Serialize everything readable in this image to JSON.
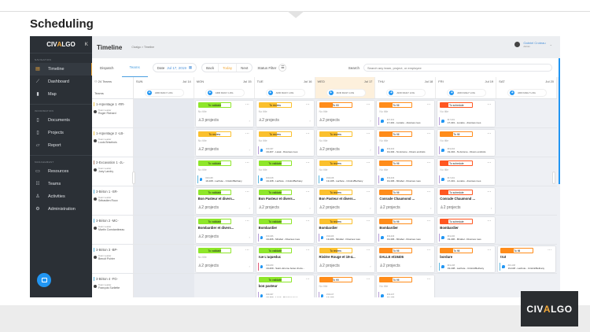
{
  "page_title": "Scheduling",
  "brand": {
    "part1": "CIV",
    "part2": "A",
    "part3": "LGO"
  },
  "sidebar": {
    "collapse": "K",
    "sections": [
      {
        "label": "NAVIGATION",
        "items": [
          {
            "label": "Timeline",
            "icon": "calendar-icon",
            "glyph": "▤",
            "active": true
          },
          {
            "label": "Dashboard",
            "icon": "chart-icon",
            "glyph": "⟋"
          },
          {
            "label": "Map",
            "icon": "map-icon",
            "glyph": "▮"
          }
        ]
      },
      {
        "label": "INFORMATION",
        "items": [
          {
            "label": "Documents",
            "icon": "document-icon",
            "glyph": "▯"
          },
          {
            "label": "Projects",
            "icon": "clipboard-icon",
            "glyph": "▯"
          },
          {
            "label": "Report",
            "icon": "report-icon",
            "glyph": "▱"
          }
        ]
      },
      {
        "label": "MANAGEMENT",
        "items": [
          {
            "label": "Resources",
            "icon": "toolbox-icon",
            "glyph": "▭"
          },
          {
            "label": "Teams",
            "icon": "team-icon",
            "glyph": "⁞⁞⁞"
          },
          {
            "label": "Activities",
            "icon": "activities-icon",
            "glyph": "♙"
          },
          {
            "label": "Administration",
            "icon": "gear-icon",
            "glyph": "⚙"
          }
        ]
      }
    ]
  },
  "header": {
    "title": "Timeline",
    "breadcrumb": [
      "Civalgo",
      ">",
      "Timeline"
    ],
    "user_name": "Gabriel Croteau",
    "user_role": "Admin"
  },
  "toolbar": {
    "tabs": [
      "Dispatch",
      "Teams"
    ],
    "date_label": "Date",
    "date_value": "Jul 17, 2019",
    "back": "Back",
    "today": "Today",
    "next": "Next",
    "status_filter": "Status Filter",
    "search_label": "Search",
    "search_placeholder": "Search any team, project, or employee"
  },
  "grid": {
    "team_count": "24 Teams",
    "teams_label": "Teams",
    "add_log": "ADD DAILY LOG",
    "days": [
      [
        "SUN",
        "Jul 14"
      ],
      [
        "MON",
        "Jul 15"
      ],
      [
        "TUE",
        "Jul 16"
      ],
      [
        "WED",
        "Jul 17"
      ],
      [
        "THU",
        "Jul 18"
      ],
      [
        "FRI",
        "Jul 19"
      ],
      [
        "SAT",
        "Jul 20"
      ]
    ],
    "leader_label": "Team Leader",
    "no_title": "No title",
    "projects_word": "projects",
    "status_colors": {
      "To validate": "#8ee62a",
      "To review": "#fbc02d",
      "To fill": "#ff8c1a",
      "To schedule": "#ff5722"
    },
    "teams": [
      {
        "name": "1-Arpentage 1 -RR-",
        "leader": "Roger Richard",
        "cards": [
          null,
          [
            "To validate",
            "",
            3
          ],
          [
            "To review",
            "",
            2
          ],
          [
            "To fill",
            "",
            2
          ],
          [
            "To fill",
            "",
            null,
            "#17-401",
            "17-401 - Lunaire - diverses rues"
          ],
          [
            "To schedule",
            "",
            null,
            "#17-401",
            "17-401 - Lunaire - diverses rues"
          ],
          null
        ]
      },
      {
        "name": "1-Arpentage 2 -LB-",
        "leader": "Louis Brisebois",
        "cards": [
          null,
          [
            "To review",
            "",
            2
          ],
          [
            "To review",
            "",
            null,
            "#19-407",
            "19-407 - Laval - Diverses rues"
          ],
          [
            "To review",
            "",
            2
          ],
          [
            "To fill",
            "",
            null,
            "#19-404",
            "19-404 - St-Jérome - Divers endroits"
          ],
          [
            "To fill",
            "",
            null,
            "#19-404",
            "19-404 - St-Jérome - Divers endroits"
          ],
          null
        ]
      },
      {
        "name": "2-Excavation 1 -JL-",
        "leader": "Joey Landry",
        "cards": [
          null,
          [
            "To validate",
            "",
            null,
            "#19-108",
            "19-108 - Lachute - Cristini/Bethany"
          ],
          [
            "To validate",
            "",
            null,
            "#19-108",
            "19-108 - Lachute - Cristini/Bethany"
          ],
          [
            "To review",
            "",
            null,
            "#19-108",
            "19-108 - Lachute - Cristini/Bethany"
          ],
          [
            "To fill",
            "",
            null,
            "#19-406",
            "19-406 - Mirabel - Diverses rues"
          ],
          [
            "To schedule",
            "",
            null,
            "#17-401",
            "17-401 - Lunaire - diverses rues"
          ],
          null
        ]
      },
      {
        "name": "3-Béton 1 -SR-",
        "leader": "Sébastien Roux",
        "cards": [
          null,
          [
            "To validate",
            "Bon Pasteur et divers...",
            2
          ],
          [
            "To validate",
            "Bon Pasteur et divers...",
            2
          ],
          [
            "To review",
            "Bon Pasteur et divers...",
            2
          ],
          [
            "To fill",
            "Conrade Chaumond ...",
            2
          ],
          [
            "To schedule",
            "Conrade Chaumond ...",
            2
          ],
          null
        ]
      },
      {
        "name": "3-Béton 2 -MC-",
        "leader": "Martin Constantineau",
        "cards": [
          null,
          [
            "To validate",
            "Bombardier et divers...",
            2
          ],
          [
            "To validate",
            "Bombardier",
            null,
            "#19-406",
            "19-406 - Mirabel - Diverses rues"
          ],
          [
            "To review",
            "Bombardier",
            null,
            "#19-406",
            "19-406 - Mirabel - Diverses rues"
          ],
          [
            "To fill",
            "Bombardier",
            null,
            "#19-406",
            "19-406 - Mirabel - Diverses rues"
          ],
          [
            "To schedule",
            "Bombardier",
            null,
            "#19-406",
            "19-406 - Mirabel - Diverses rues"
          ],
          null
        ]
      },
      {
        "name": "3-Béton 3 -BP-",
        "leader": "Benoit Poirier",
        "cards": [
          null,
          [
            "To validate",
            "",
            2
          ],
          [
            "To validate",
            "rue L'aqueduc",
            null,
            "#19-209",
            "19-209 - Saint-Jérome boisé chuze..."
          ],
          [
            "To review",
            "Rivière Rouge et 19-4...",
            2
          ],
          [
            "To fill",
            "DALLE et19406",
            2
          ],
          [
            "To fill",
            "bordure",
            null,
            "#19-108",
            "19-108 - Lachute - Cristini/Bethany"
          ],
          [
            "To fill",
            "trut",
            null,
            "#19-108",
            "19-108 - Lachute - Cristini/Bethany"
          ]
        ]
      },
      {
        "name": "3-Béton 4 -FG-",
        "leader": "François Surliette",
        "cards": [
          null,
          null,
          [
            "To validate",
            "bon pasteur",
            null,
            "#19-407",
            "19-407 - Laval - Diverses rues"
          ],
          [
            "To fill",
            "",
            null,
            "#19-107",
            "19-107"
          ],
          [
            "To fill",
            "",
            null,
            "#19-107",
            "19-107"
          ],
          null,
          null
        ]
      }
    ]
  }
}
